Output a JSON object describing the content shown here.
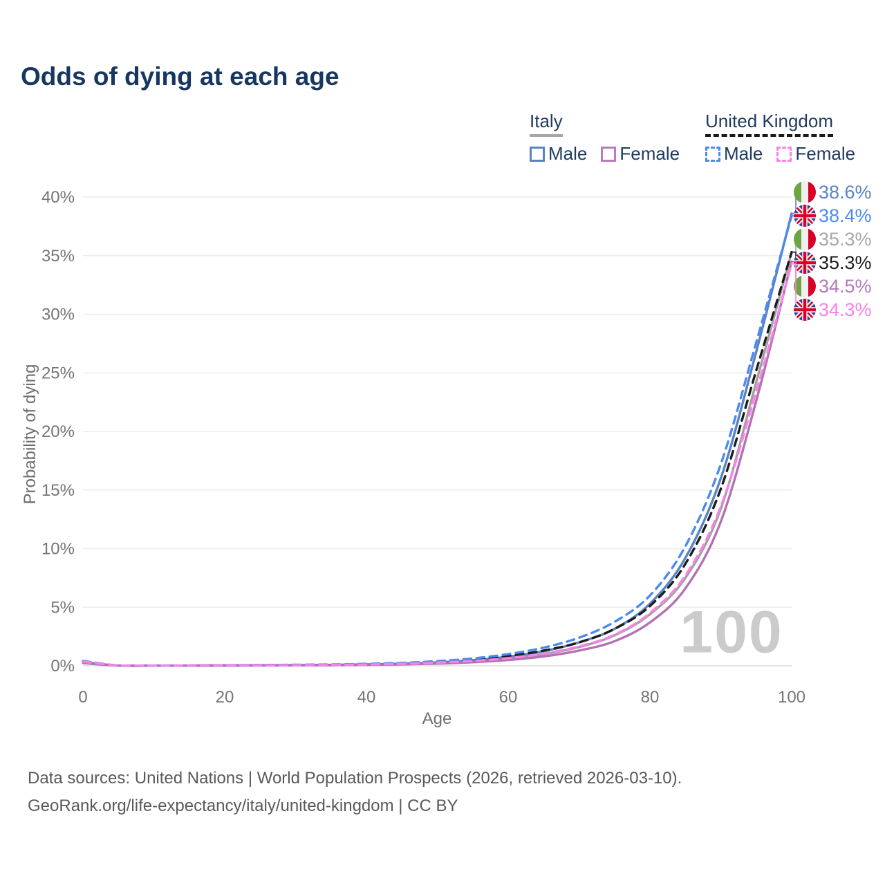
{
  "title": "Odds of dying at each age",
  "watermark": "100",
  "legend": {
    "groups": [
      {
        "id": "italy",
        "label": "Italy",
        "line_style": "solid",
        "underline_color": "#a6a6a6",
        "items": [
          {
            "label": "Male",
            "color": "#5b82c3",
            "dash": "solid"
          },
          {
            "label": "Female",
            "color": "#bd7abc",
            "dash": "solid"
          }
        ]
      },
      {
        "id": "uk",
        "label": "United Kingdom",
        "line_style": "dashed",
        "underline_color": "#1a1a1a",
        "items": [
          {
            "label": "Male",
            "color": "#4a8bf0",
            "dash": "dashed"
          },
          {
            "label": "Female",
            "color": "#fa82e6",
            "dash": "dashed"
          }
        ]
      }
    ]
  },
  "chart_data": {
    "type": "line",
    "title": "Odds of dying at each age",
    "xlabel": "Age",
    "ylabel": "Probability of dying",
    "xlim": [
      0,
      100
    ],
    "ylim": [
      0,
      40
    ],
    "x_ticks": [
      0,
      20,
      40,
      60,
      80,
      100
    ],
    "y_ticks": [
      0,
      5,
      10,
      15,
      20,
      25,
      30,
      35,
      40
    ],
    "y_tick_suffix": "%",
    "grid": "horizontal",
    "age_counter_watermark": "100",
    "ages": [
      0,
      5,
      10,
      15,
      20,
      25,
      30,
      35,
      40,
      45,
      50,
      55,
      60,
      65,
      70,
      75,
      80,
      85,
      90,
      95,
      100
    ],
    "series": [
      {
        "name": "Italy Male",
        "flag": "italy",
        "color": "#5b82c3",
        "dash": "solid",
        "end_label": "38.6%",
        "label_color": "#5b82c3",
        "values": [
          0.32,
          0.02,
          0.01,
          0.02,
          0.04,
          0.05,
          0.06,
          0.08,
          0.12,
          0.18,
          0.29,
          0.48,
          0.78,
          1.25,
          2.0,
          3.15,
          5.3,
          9.2,
          16.0,
          26.8,
          38.6
        ]
      },
      {
        "name": "United Kingdom Male",
        "flag": "uk",
        "color": "#4a8bf0",
        "dash": "dashed",
        "end_label": "38.4%",
        "label_color": "#4a8bf0",
        "values": [
          0.42,
          0.02,
          0.02,
          0.03,
          0.05,
          0.07,
          0.09,
          0.12,
          0.17,
          0.25,
          0.4,
          0.63,
          1.0,
          1.55,
          2.4,
          3.75,
          6.0,
          10.2,
          17.2,
          27.6,
          38.4
        ]
      },
      {
        "name": "Italy Total",
        "flag": "italy",
        "color": "#a0a0a0",
        "dash": "solid",
        "end_label": "35.3%",
        "label_color": "#a8a8a8",
        "values": [
          0.28,
          0.02,
          0.01,
          0.02,
          0.03,
          0.04,
          0.05,
          0.07,
          0.1,
          0.15,
          0.24,
          0.39,
          0.63,
          1.0,
          1.6,
          2.6,
          4.4,
          7.5,
          13.4,
          24.2,
          35.3
        ]
      },
      {
        "name": "United Kingdom Total",
        "flag": "uk",
        "color": "#1c1c1c",
        "dash": "dashed",
        "end_label": "35.3%",
        "label_color": "#1a1a1a",
        "values": [
          0.39,
          0.02,
          0.01,
          0.02,
          0.04,
          0.05,
          0.07,
          0.1,
          0.14,
          0.21,
          0.33,
          0.52,
          0.83,
          1.3,
          2.0,
          3.15,
          5.1,
          8.7,
          15.1,
          25.2,
          35.3
        ]
      },
      {
        "name": "Italy Female",
        "flag": "italy",
        "color": "#b470b5",
        "dash": "solid",
        "end_label": "34.5%",
        "label_color": "#b279b8",
        "values": [
          0.24,
          0.01,
          0.01,
          0.01,
          0.02,
          0.03,
          0.04,
          0.05,
          0.08,
          0.12,
          0.19,
          0.31,
          0.5,
          0.8,
          1.3,
          2.1,
          3.7,
          6.6,
          12.3,
          22.6,
          34.5
        ]
      },
      {
        "name": "United Kingdom Female",
        "flag": "uk",
        "color": "#fa82e6",
        "dash": "dashed",
        "end_label": "34.3%",
        "label_color": "#fb80e8",
        "values": [
          0.36,
          0.02,
          0.01,
          0.02,
          0.03,
          0.04,
          0.05,
          0.08,
          0.11,
          0.17,
          0.27,
          0.42,
          0.66,
          1.05,
          1.65,
          2.65,
          4.5,
          7.7,
          13.6,
          23.4,
          34.3
        ]
      }
    ]
  },
  "footer": {
    "line1": "Data sources: United Nations | World Population Prospects (2026, retrieved 2026-03-10).",
    "line2": "GeoRank.org/life-expectancy/italy/united-kingdom | CC BY"
  }
}
